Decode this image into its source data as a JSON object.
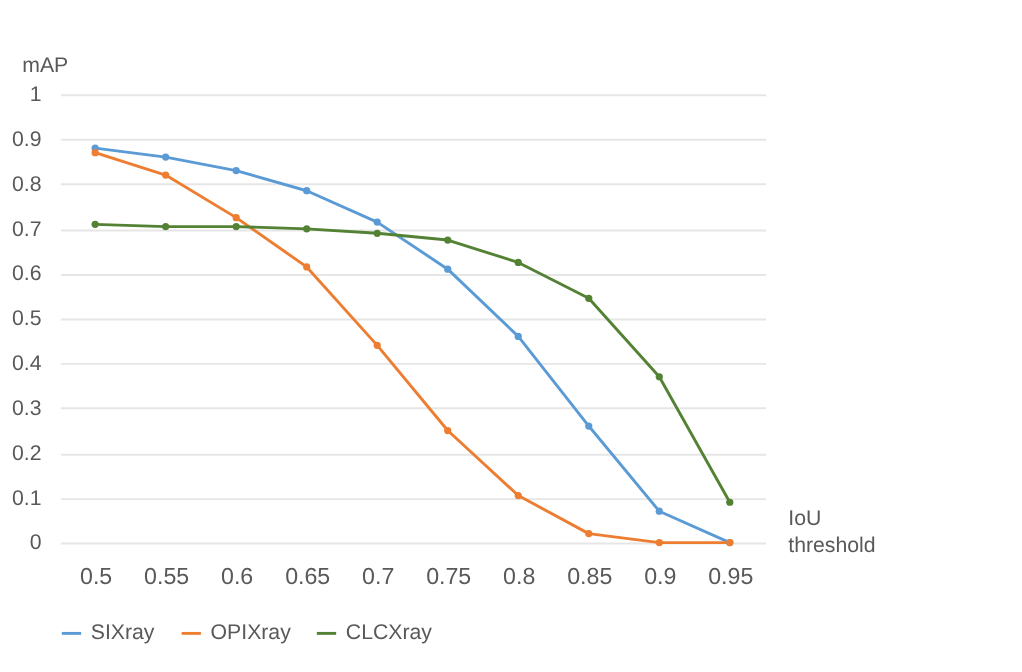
{
  "chart_data": {
    "type": "line",
    "xlabel": "IoU threshold",
    "ylabel": "mAP",
    "categories": [
      "0.5",
      "0.55",
      "0.6",
      "0.65",
      "0.7",
      "0.75",
      "0.8",
      "0.85",
      "0.9",
      "0.95"
    ],
    "series": [
      {
        "name": "SIXray",
        "color": "#5b9bd5",
        "values": [
          0.88,
          0.86,
          0.83,
          0.785,
          0.715,
          0.61,
          0.46,
          0.26,
          0.07,
          0.0
        ]
      },
      {
        "name": "OPIXray",
        "color": "#ed7d31",
        "values": [
          0.87,
          0.82,
          0.725,
          0.615,
          0.44,
          0.25,
          0.105,
          0.02,
          0.0,
          0.0
        ]
      },
      {
        "name": "CLCXray",
        "color": "#548235",
        "values": [
          0.71,
          0.705,
          0.705,
          0.7,
          0.69,
          0.675,
          0.625,
          0.545,
          0.37,
          0.09
        ]
      }
    ],
    "ylim": [
      0,
      1
    ],
    "yticks": [
      0,
      0.1,
      0.2,
      0.3,
      0.4,
      0.5,
      0.6,
      0.7,
      0.8,
      0.9,
      1
    ],
    "grid": "y",
    "legend": "bottom",
    "marker": "circle",
    "line_style": "solid"
  }
}
